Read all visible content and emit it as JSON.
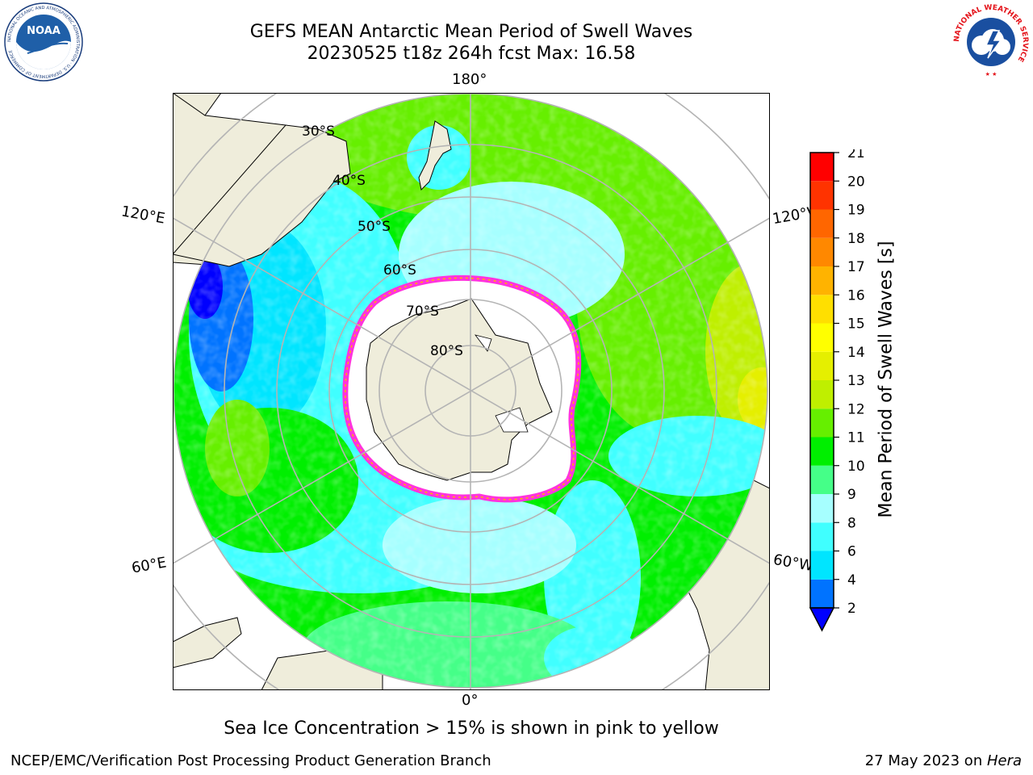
{
  "title": {
    "line1": "GEFS MEAN Antarctic Mean Period of Swell Waves",
    "line2": "20230525 t18z 264h fcst   Max: 16.58"
  },
  "map": {
    "projection": "south-polar-stereographic",
    "lon_labels": {
      "top": "180°",
      "bottom": "0°",
      "upper_left": "120°E",
      "upper_right": "120°W",
      "lower_left": "60°E",
      "lower_right": "60°W"
    },
    "lat_labels": [
      "30°S",
      "40°S",
      "50°S",
      "60°S",
      "70°S",
      "80°S"
    ],
    "colors": {
      "land": "#efeddb",
      "grid": "#b4b4b4",
      "sea_ice": "#ff33dd"
    }
  },
  "colorbar": {
    "label": "Mean Period of Swell Waves [s]",
    "ticks": [
      "2",
      "4",
      "6",
      "8",
      "9",
      "10",
      "11",
      "12",
      "13",
      "14",
      "15",
      "16",
      "17",
      "18",
      "19",
      "20",
      "21"
    ],
    "colors": [
      "#0073ff",
      "#00e5ff",
      "#40ffff",
      "#a6ffff",
      "#45ff88",
      "#00ef00",
      "#66ef00",
      "#bfef00",
      "#e5ef00",
      "#ffff00",
      "#ffdf00",
      "#ffb300",
      "#ff8800",
      "#ff6600",
      "#ff3300",
      "#ff0000"
    ],
    "under_color": "#0000ff"
  },
  "caption": "Sea Ice Concentration > 15% is shown in pink to yellow",
  "footer": {
    "left": "NCEP/EMC/Verification Post Processing Product Generation Branch",
    "right_date": "27 May 2023 on ",
    "right_host": "Hera"
  },
  "logos": {
    "noaa": {
      "text": "NOAA",
      "ring": "NATIONAL OCEANIC AND ATMOSPHERIC ADMINISTRATION · U.S. DEPARTMENT OF COMMERCE"
    },
    "nws": {
      "ring": "NATIONAL WEATHER SERVICE"
    }
  }
}
